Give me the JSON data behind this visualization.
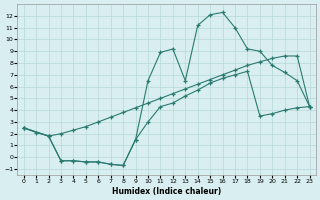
{
  "xlabel": "Humidex (Indice chaleur)",
  "bg_color": "#d8eef0",
  "line_color": "#2a7a70",
  "grid_color": "#b8d8d8",
  "xlim": [
    -0.5,
    23.5
  ],
  "ylim": [
    -1.5,
    13.0
  ],
  "xticks": [
    0,
    1,
    2,
    3,
    4,
    5,
    6,
    7,
    8,
    9,
    10,
    11,
    12,
    13,
    14,
    15,
    16,
    17,
    18,
    19,
    20,
    21,
    22,
    23
  ],
  "yticks": [
    -1,
    0,
    1,
    2,
    3,
    4,
    5,
    6,
    7,
    8,
    9,
    10,
    11,
    12
  ],
  "line1_x": [
    0,
    1,
    2,
    3,
    4,
    5,
    6,
    7,
    8,
    9,
    10,
    11,
    12,
    13,
    14,
    15,
    16,
    17,
    18,
    19,
    20,
    21,
    22,
    23
  ],
  "line1_y": [
    2.5,
    2.1,
    1.8,
    2.0,
    2.3,
    2.6,
    3.0,
    3.4,
    3.8,
    4.2,
    4.6,
    5.0,
    5.4,
    5.8,
    6.2,
    6.6,
    7.0,
    7.4,
    7.8,
    8.1,
    8.4,
    8.6,
    8.6,
    4.3
  ],
  "line2_x": [
    0,
    2,
    3,
    4,
    5,
    6,
    7,
    8,
    9,
    10,
    11,
    12,
    13,
    14,
    15,
    16,
    17,
    18,
    19,
    20,
    21,
    22,
    23
  ],
  "line2_y": [
    2.5,
    1.8,
    -0.3,
    -0.3,
    -0.4,
    -0.4,
    -0.6,
    -0.7,
    1.5,
    6.5,
    8.9,
    9.2,
    6.5,
    11.2,
    12.1,
    12.3,
    11.0,
    9.2,
    9.0,
    7.8,
    7.2,
    6.5,
    4.3
  ],
  "line3_x": [
    0,
    2,
    3,
    4,
    5,
    6,
    7,
    8,
    9,
    10,
    11,
    12,
    13,
    14,
    15,
    16,
    17,
    18,
    19,
    20,
    21,
    22,
    23
  ],
  "line3_y": [
    2.5,
    1.8,
    -0.3,
    -0.3,
    -0.4,
    -0.4,
    -0.6,
    -0.7,
    1.5,
    3.0,
    4.3,
    4.6,
    5.2,
    5.7,
    6.3,
    6.7,
    7.0,
    7.3,
    3.5,
    3.7,
    4.0,
    4.2,
    4.3
  ]
}
